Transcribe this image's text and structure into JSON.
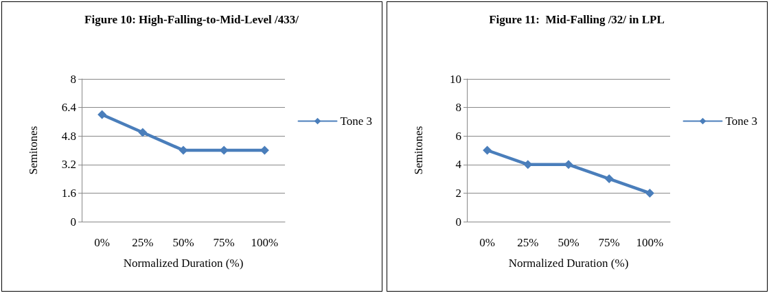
{
  "chart_data": [
    {
      "type": "line",
      "title": "Figure 10: High-Falling-to-Mid-Level /433/",
      "xlabel": "Normalized Duration (%)",
      "ylabel": "Semitones",
      "categories": [
        "0%",
        "25%",
        "50%",
        "75%",
        "100%"
      ],
      "series": [
        {
          "name": "Tone 3",
          "color": "#4a7ebb",
          "values": [
            6,
            5,
            4,
            4,
            4
          ]
        }
      ],
      "ylim": [
        0,
        8
      ],
      "yticks": [
        0,
        1.6,
        3.2,
        4.8,
        6.4,
        8
      ],
      "grid": "y",
      "legend": "right",
      "marker": "diamond",
      "line_style": "solid"
    },
    {
      "type": "line",
      "title": "Figure 11:  Mid-Falling /32/ in LPL",
      "xlabel": "Normalized Duration (%)",
      "ylabel": "Semitones",
      "categories": [
        "0%",
        "25%",
        "50%",
        "75%",
        "100%"
      ],
      "series": [
        {
          "name": "Tone 3",
          "color": "#4a7ebb",
          "values": [
            5,
            4,
            4,
            3,
            2
          ]
        }
      ],
      "ylim": [
        0,
        10
      ],
      "yticks": [
        0,
        2,
        4,
        6,
        8,
        10
      ],
      "grid": "y",
      "legend": "right",
      "marker": "diamond",
      "line_style": "solid"
    }
  ]
}
